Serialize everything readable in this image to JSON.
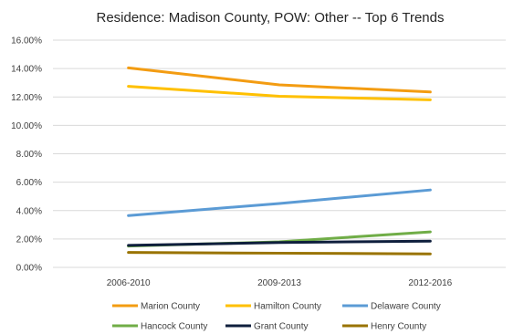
{
  "chart_data": {
    "type": "line",
    "title": "Residence: Madison County, POW: Other -- Top 6 Trends",
    "xlabel": "",
    "ylabel": "",
    "categories": [
      "2006-2010",
      "2009-2013",
      "2012-2016"
    ],
    "ylim": [
      0,
      16
    ],
    "yticks": [
      0,
      2,
      4,
      6,
      8,
      10,
      12,
      14,
      16
    ],
    "ytick_labels": [
      "0.00%",
      "2.00%",
      "4.00%",
      "6.00%",
      "8.00%",
      "10.00%",
      "12.00%",
      "14.00%",
      "16.00%"
    ],
    "grid": true,
    "legend_position": "bottom",
    "series": [
      {
        "name": "Marion County",
        "color": "#F39C12",
        "values": [
          14.05,
          12.85,
          12.35
        ]
      },
      {
        "name": "Hamilton County",
        "color": "#FFC000",
        "values": [
          12.75,
          12.05,
          11.8
        ]
      },
      {
        "name": "Delaware County",
        "color": "#5B9BD5",
        "values": [
          3.65,
          4.5,
          5.45
        ]
      },
      {
        "name": "Hancock County",
        "color": "#70AD47",
        "values": [
          1.5,
          1.8,
          2.5
        ]
      },
      {
        "name": "Grant County",
        "color": "#0F1F3D",
        "values": [
          1.55,
          1.75,
          1.85
        ]
      },
      {
        "name": "Henry County",
        "color": "#997300",
        "values": [
          1.05,
          1.0,
          0.95
        ]
      }
    ]
  }
}
